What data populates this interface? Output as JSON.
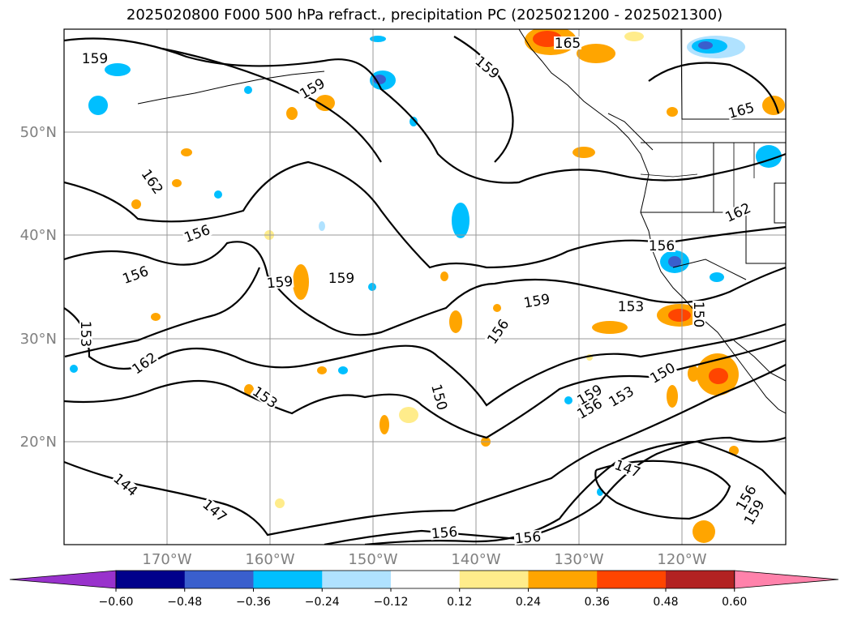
{
  "title": "2025020800 F000 500 hPa refract., precipitation PC (2025021200 - 2025021300)",
  "lat_labels": [
    "50°N",
    "40°N",
    "30°N",
    "20°N"
  ],
  "lon_labels": [
    "170°W",
    "160°W",
    "150°W",
    "140°W",
    "130°W",
    "120°W"
  ],
  "contour_labels": [
    "159",
    "165",
    "159",
    "159",
    "165",
    "162",
    "162",
    "156",
    "156",
    "159",
    "156",
    "159",
    "159",
    "153",
    "156",
    "150",
    "153",
    "162",
    "153",
    "150",
    "159",
    "156",
    "153",
    "150",
    "144",
    "147",
    "147",
    "156",
    "156",
    "156",
    "159"
  ],
  "colorbar": {
    "ticks": [
      "−0.60",
      "−0.48",
      "−0.36",
      "−0.24",
      "−0.12",
      "0.12",
      "0.24",
      "0.36",
      "0.48",
      "0.60"
    ],
    "colors": [
      "#9932cc",
      "#00008b",
      "#3a5fcd",
      "#00bfff",
      "#b0e2ff",
      "#ffffff",
      "#ffec8b",
      "#ffa500",
      "#ff4500",
      "#b22222",
      "#ff82ab"
    ]
  }
}
